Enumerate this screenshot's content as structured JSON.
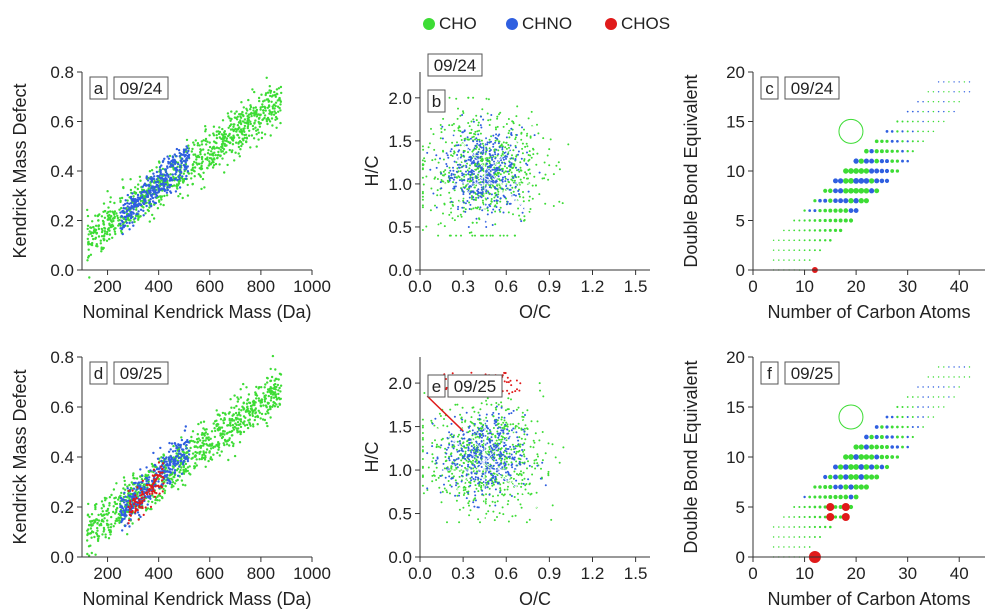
{
  "legend": [
    {
      "label": "CHO",
      "color": "#3ddc35"
    },
    {
      "label": "CHNO",
      "color": "#2f5fe0"
    },
    {
      "label": "CHOS",
      "color": "#e01a1a"
    }
  ],
  "chart_data": [
    {
      "panel": "a",
      "date": "09/24",
      "type": "scatter",
      "xlabel": "Nominal Kendrick Mass (Da)",
      "ylabel": "Kendrick Mass Defect",
      "xlim": [
        100,
        1000
      ],
      "ylim": [
        0,
        0.8
      ],
      "xticks": [
        "200",
        "400",
        "600",
        "800",
        "1000"
      ],
      "yticks": [
        "0.0",
        "0.2",
        "0.4",
        "0.6",
        "0.8"
      ],
      "band": {
        "x": [
          120,
          880
        ],
        "y_center_start": 0.12,
        "y_center_end": 0.69,
        "width": 0.09
      },
      "series": [
        {
          "name": "CHO",
          "trend": {
            "x": [
              120,
              880
            ],
            "y": [
              0.12,
              0.69
            ]
          }
        },
        {
          "name": "CHNO",
          "trend": {
            "x": [
              250,
              520
            ],
            "y": [
              0.2,
              0.46
            ]
          }
        }
      ]
    },
    {
      "panel": "b",
      "date": "09/24",
      "type": "scatter",
      "xlabel": "O/C",
      "ylabel": "H/C",
      "xlim": [
        0,
        1.6
      ],
      "ylim": [
        0,
        2.3
      ],
      "xticks": [
        "0.0",
        "0.3",
        "0.6",
        "0.9",
        "1.2",
        "1.5"
      ],
      "yticks": [
        "0.0",
        "0.5",
        "1.0",
        "1.5",
        "2.0"
      ],
      "cluster": {
        "center": [
          0.45,
          1.15
        ],
        "spread": [
          0.2,
          0.4
        ]
      }
    },
    {
      "panel": "c",
      "date": "09/24",
      "type": "scatter",
      "xlabel": "Number of Carbon Atoms",
      "ylabel": "Double Bond Equivalent",
      "xlim": [
        0,
        45
      ],
      "ylim": [
        0,
        20
      ],
      "xticks": [
        "0",
        "10",
        "20",
        "30",
        "40"
      ],
      "yticks": [
        "0",
        "5",
        "10",
        "15",
        "20"
      ],
      "chos_points": [
        {
          "c": 12,
          "dbe": 0
        }
      ]
    },
    {
      "panel": "d",
      "date": "09/25",
      "type": "scatter",
      "xlabel": "Nominal Kendrick Mass (Da)",
      "ylabel": "Kendrick Mass Defect",
      "xlim": [
        100,
        1000
      ],
      "ylim": [
        0,
        0.8
      ],
      "xticks": [
        "200",
        "400",
        "600",
        "800",
        "1000"
      ],
      "yticks": [
        "0.0",
        "0.2",
        "0.4",
        "0.6",
        "0.8"
      ],
      "band": {
        "x": [
          120,
          880
        ],
        "y_center_start": 0.1,
        "y_center_end": 0.68,
        "width": 0.09
      },
      "series": [
        {
          "name": "CHO",
          "trend": {
            "x": [
              120,
              880
            ],
            "y": [
              0.1,
              0.68
            ]
          }
        },
        {
          "name": "CHNO",
          "trend": {
            "x": [
              250,
              520
            ],
            "y": [
              0.18,
              0.44
            ]
          }
        },
        {
          "name": "CHOS",
          "trend": {
            "x": [
              280,
              420
            ],
            "y": [
              0.18,
              0.32
            ]
          }
        }
      ]
    },
    {
      "panel": "e",
      "date": "09/25",
      "type": "scatter",
      "xlabel": "O/C",
      "ylabel": "H/C",
      "xlim": [
        0,
        1.6
      ],
      "ylim": [
        0,
        2.3
      ],
      "xticks": [
        "0.0",
        "0.3",
        "0.6",
        "0.9",
        "1.2",
        "1.5"
      ],
      "yticks": [
        "0.0",
        "0.5",
        "1.0",
        "1.5",
        "2.0"
      ],
      "cluster": {
        "center": [
          0.45,
          1.15
        ],
        "spread": [
          0.2,
          0.4
        ]
      }
    },
    {
      "panel": "f",
      "date": "09/25",
      "type": "scatter",
      "xlabel": "Number of Carbon Atoms",
      "ylabel": "Double Bond Equivalent",
      "xlim": [
        0,
        45
      ],
      "ylim": [
        0,
        20
      ],
      "xticks": [
        "0",
        "10",
        "20",
        "30",
        "40"
      ],
      "yticks": [
        "0",
        "5",
        "10",
        "15",
        "20"
      ],
      "chos_points": [
        {
          "c": 12,
          "dbe": 0
        },
        {
          "c": 15,
          "dbe": 4
        },
        {
          "c": 18,
          "dbe": 4
        },
        {
          "c": 15,
          "dbe": 5
        },
        {
          "c": 18,
          "dbe": 5
        }
      ]
    }
  ]
}
